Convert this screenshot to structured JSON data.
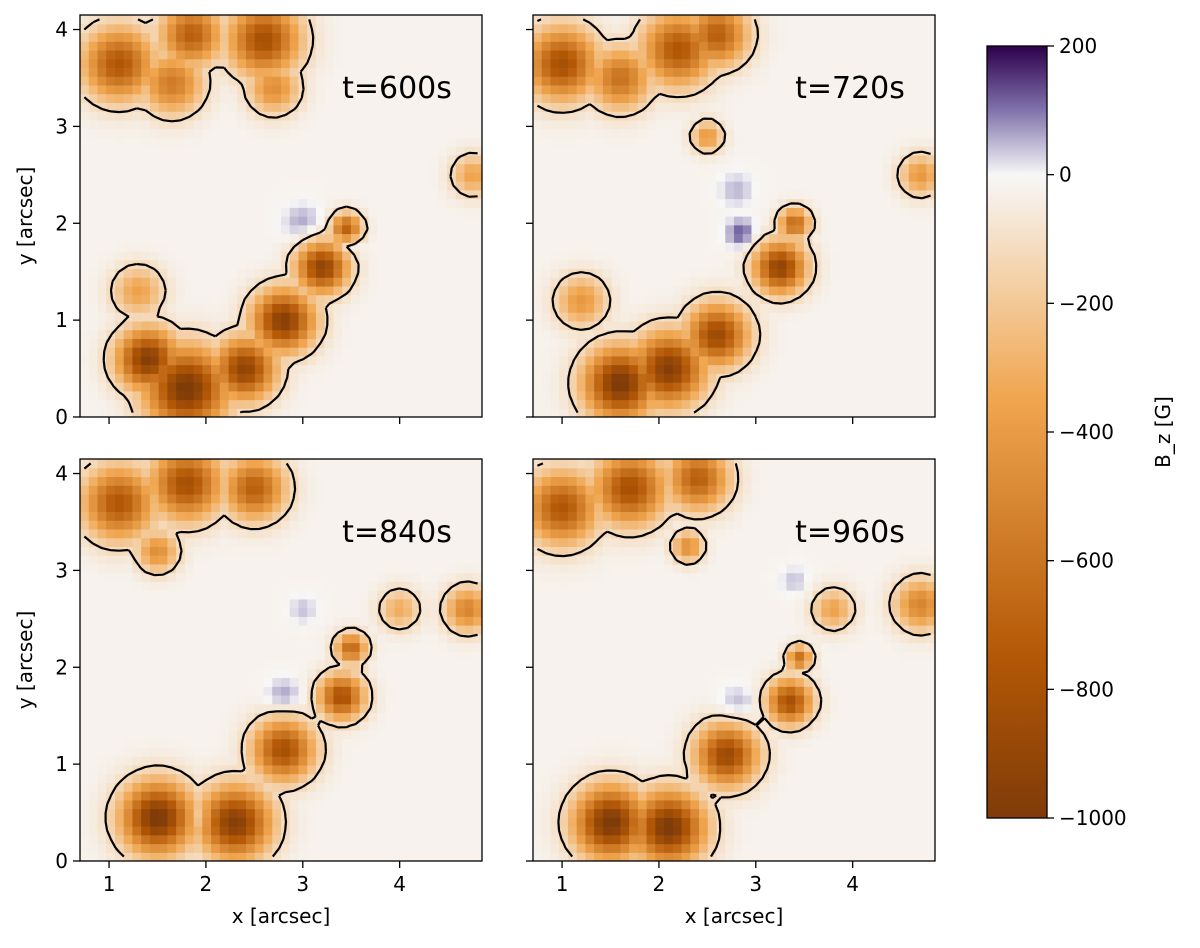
{
  "chart_data": {
    "type": "heatmap",
    "colorbar": {
      "label": "B_z [G]",
      "ticks": [
        200,
        0,
        -200,
        -400,
        -600,
        -800,
        -1000
      ],
      "range": [
        -1000,
        200
      ],
      "colors": {
        "max": "#2d004b",
        "upper": "#8073ac",
        "mid": "#f7f7f7",
        "lower": "#f0a54e",
        "low": "#b35806",
        "min": "#7f3b08"
      }
    },
    "contour_color": "#000000",
    "xlabel": "x [arcsec]",
    "ylabel": "y [arcsec]",
    "xlim": [
      0.7,
      4.85
    ],
    "ylim": [
      0,
      4.15
    ],
    "xticks": [
      1,
      2,
      3,
      4
    ],
    "yticks": [
      0,
      1,
      2,
      3,
      4
    ],
    "panels": [
      {
        "title": "t=600s",
        "neg_regions": [
          {
            "x": 1.1,
            "y": 3.65,
            "s": 0.35,
            "v": -750
          },
          {
            "x": 1.65,
            "y": 3.45,
            "s": 0.3,
            "v": -550
          },
          {
            "x": 1.85,
            "y": 3.95,
            "s": 0.3,
            "v": -700
          },
          {
            "x": 2.6,
            "y": 3.9,
            "s": 0.35,
            "v": -800
          },
          {
            "x": 2.7,
            "y": 3.4,
            "s": 0.25,
            "v": -450
          },
          {
            "x": 4.75,
            "y": 2.5,
            "s": 0.2,
            "v": -350
          },
          {
            "x": 1.3,
            "y": 1.3,
            "s": 0.25,
            "v": -350
          },
          {
            "x": 1.8,
            "y": 0.3,
            "s": 0.4,
            "v": -1000
          },
          {
            "x": 1.4,
            "y": 0.6,
            "s": 0.3,
            "v": -950
          },
          {
            "x": 2.4,
            "y": 0.5,
            "s": 0.3,
            "v": -900
          },
          {
            "x": 2.8,
            "y": 1.0,
            "s": 0.3,
            "v": -950
          },
          {
            "x": 3.2,
            "y": 1.55,
            "s": 0.25,
            "v": -900
          },
          {
            "x": 3.45,
            "y": 1.95,
            "s": 0.15,
            "v": -700
          }
        ],
        "pos_regions": [
          {
            "x": 3.0,
            "y": 2.0,
            "s": 0.2,
            "v": 90
          },
          {
            "x": 3.5,
            "y": 1.8,
            "s": 0.12,
            "v": 80
          }
        ]
      },
      {
        "title": "t=720s",
        "neg_regions": [
          {
            "x": 1.0,
            "y": 3.65,
            "s": 0.35,
            "v": -800
          },
          {
            "x": 1.6,
            "y": 3.5,
            "s": 0.3,
            "v": -600
          },
          {
            "x": 2.2,
            "y": 3.8,
            "s": 0.35,
            "v": -750
          },
          {
            "x": 2.6,
            "y": 3.95,
            "s": 0.3,
            "v": -700
          },
          {
            "x": 2.5,
            "y": 2.9,
            "s": 0.15,
            "v": -400
          },
          {
            "x": 4.7,
            "y": 2.5,
            "s": 0.2,
            "v": -400
          },
          {
            "x": 1.2,
            "y": 1.2,
            "s": 0.25,
            "v": -400
          },
          {
            "x": 1.6,
            "y": 0.35,
            "s": 0.35,
            "v": -1000
          },
          {
            "x": 2.1,
            "y": 0.5,
            "s": 0.35,
            "v": -950
          },
          {
            "x": 2.6,
            "y": 0.85,
            "s": 0.3,
            "v": -850
          },
          {
            "x": 3.25,
            "y": 1.55,
            "s": 0.25,
            "v": -900
          },
          {
            "x": 3.4,
            "y": 2.0,
            "s": 0.15,
            "v": -650
          }
        ],
        "pos_regions": [
          {
            "x": 2.85,
            "y": 1.9,
            "s": 0.15,
            "v": 150
          },
          {
            "x": 2.8,
            "y": 2.35,
            "s": 0.18,
            "v": 70
          }
        ]
      },
      {
        "title": "t=840s",
        "neg_regions": [
          {
            "x": 1.1,
            "y": 3.7,
            "s": 0.35,
            "v": -750
          },
          {
            "x": 1.8,
            "y": 3.9,
            "s": 0.35,
            "v": -800
          },
          {
            "x": 2.5,
            "y": 3.85,
            "s": 0.3,
            "v": -700
          },
          {
            "x": 1.5,
            "y": 3.2,
            "s": 0.2,
            "v": -450
          },
          {
            "x": 4.7,
            "y": 2.6,
            "s": 0.22,
            "v": -500
          },
          {
            "x": 4.0,
            "y": 2.6,
            "s": 0.2,
            "v": -300
          },
          {
            "x": 1.5,
            "y": 0.45,
            "s": 0.35,
            "v": -1000
          },
          {
            "x": 2.3,
            "y": 0.4,
            "s": 0.35,
            "v": -950
          },
          {
            "x": 2.8,
            "y": 1.15,
            "s": 0.3,
            "v": -800
          },
          {
            "x": 3.4,
            "y": 1.7,
            "s": 0.22,
            "v": -800
          },
          {
            "x": 3.5,
            "y": 2.2,
            "s": 0.15,
            "v": -650
          }
        ],
        "pos_regions": [
          {
            "x": 2.8,
            "y": 1.7,
            "s": 0.18,
            "v": 100
          },
          {
            "x": 1.95,
            "y": 0.45,
            "s": 0.08,
            "v": 120
          },
          {
            "x": 3.0,
            "y": 2.6,
            "s": 0.15,
            "v": 60
          }
        ]
      },
      {
        "title": "t=960s",
        "neg_regions": [
          {
            "x": 1.0,
            "y": 3.65,
            "s": 0.35,
            "v": -750
          },
          {
            "x": 1.7,
            "y": 3.85,
            "s": 0.35,
            "v": -800
          },
          {
            "x": 2.4,
            "y": 3.95,
            "s": 0.3,
            "v": -700
          },
          {
            "x": 2.3,
            "y": 3.25,
            "s": 0.15,
            "v": -450
          },
          {
            "x": 4.7,
            "y": 2.65,
            "s": 0.25,
            "v": -500
          },
          {
            "x": 3.8,
            "y": 2.6,
            "s": 0.2,
            "v": -350
          },
          {
            "x": 1.5,
            "y": 0.4,
            "s": 0.35,
            "v": -1000
          },
          {
            "x": 2.1,
            "y": 0.35,
            "s": 0.35,
            "v": -1000
          },
          {
            "x": 2.7,
            "y": 1.1,
            "s": 0.3,
            "v": -850
          },
          {
            "x": 3.35,
            "y": 1.65,
            "s": 0.22,
            "v": -800
          },
          {
            "x": 3.45,
            "y": 2.1,
            "s": 0.12,
            "v": -600
          }
        ],
        "pos_regions": [
          {
            "x": 2.8,
            "y": 1.6,
            "s": 0.2,
            "v": 90
          },
          {
            "x": 3.4,
            "y": 2.9,
            "s": 0.15,
            "v": 60
          }
        ]
      }
    ]
  }
}
